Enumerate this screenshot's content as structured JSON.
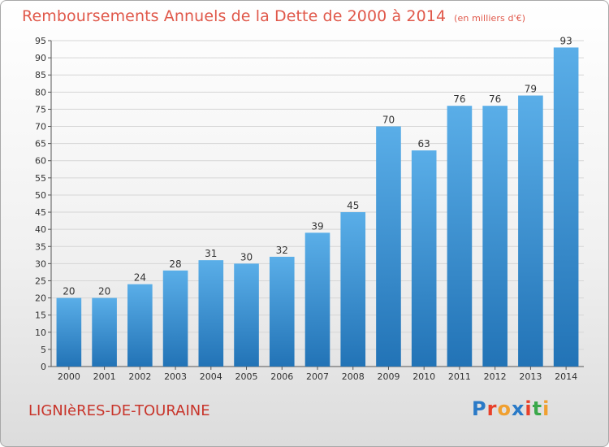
{
  "title": "Remboursements Annuels de la Dette de 2000 à 2014",
  "subtitle": "(en milliers d'€)",
  "location": "LIGNIèRES-DE-TOURAINE",
  "logo": {
    "text": "Proxiti",
    "colors": [
      "#2a7ac7",
      "#e8402a",
      "#f0a030",
      "#2a7ac7",
      "#e8402a",
      "#3aa84a",
      "#f0a030"
    ]
  },
  "colors": {
    "title": "#e0584a",
    "location": "#c8342a",
    "bar_light": "#5aaee8",
    "bar_dark": "#2273b6"
  },
  "chart_data": {
    "type": "bar",
    "title": "Remboursements Annuels de la Dette de 2000 à 2014",
    "subtitle": "(en milliers d'€)",
    "categories": [
      "2000",
      "2001",
      "2002",
      "2003",
      "2004",
      "2005",
      "2006",
      "2007",
      "2008",
      "2009",
      "2010",
      "2011",
      "2012",
      "2013",
      "2014"
    ],
    "values": [
      20,
      20,
      24,
      28,
      31,
      30,
      32,
      39,
      45,
      70,
      63,
      76,
      76,
      79,
      93
    ],
    "ylim": [
      0,
      95
    ],
    "yticks": [
      0,
      5,
      10,
      15,
      20,
      25,
      30,
      35,
      40,
      45,
      50,
      55,
      60,
      65,
      70,
      75,
      80,
      85,
      90,
      95
    ],
    "grid": true,
    "data_labels": true
  }
}
